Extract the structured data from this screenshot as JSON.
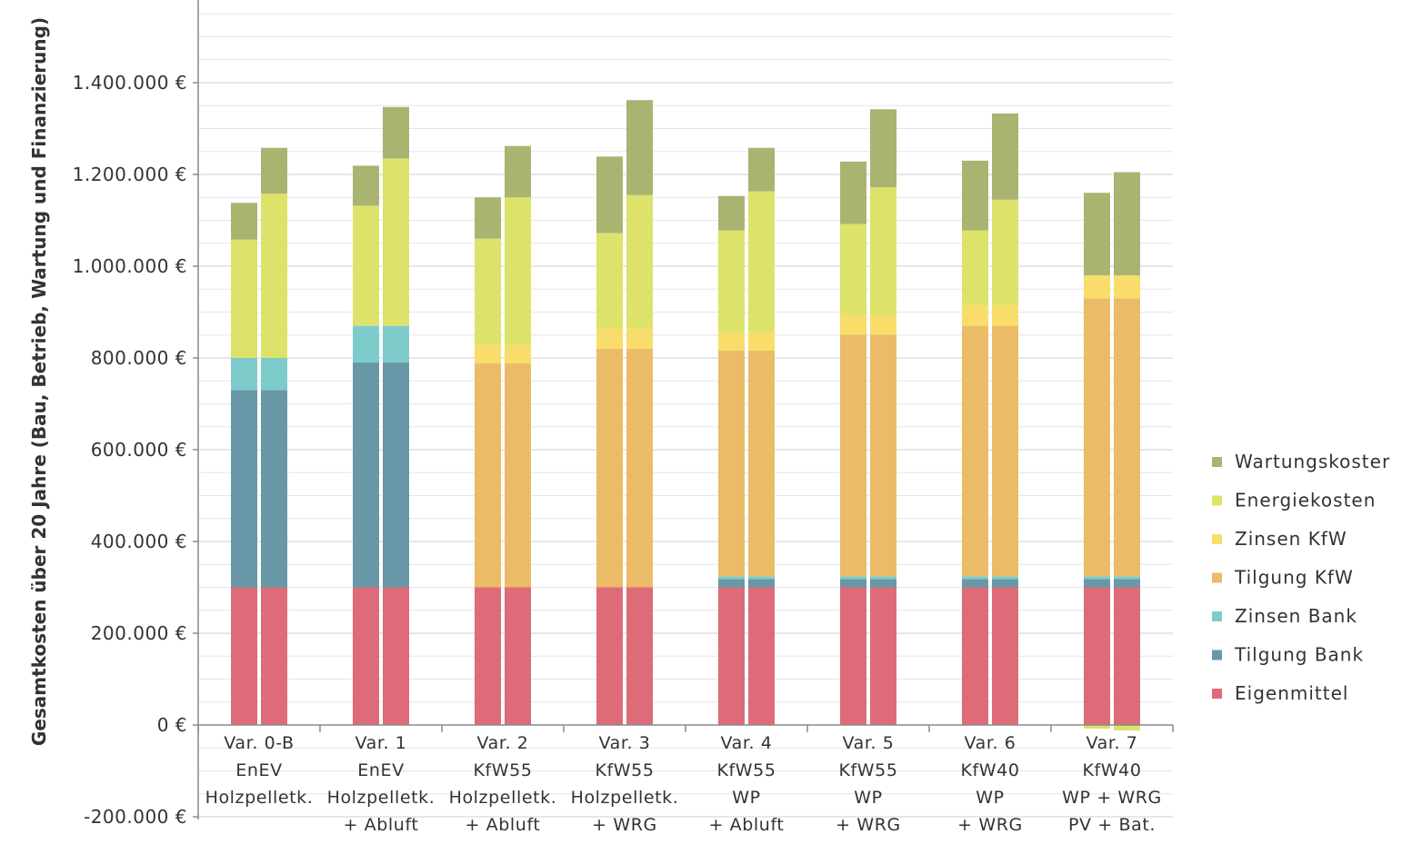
{
  "chart_data": {
    "type": "bar",
    "stacked": true,
    "bars_per_category": 2,
    "ylabel": "Gesamtkosten über 20 Jahre (Bau, Betrieb, Wartung und Finanzierung)",
    "ylim": [
      -200000,
      1560000
    ],
    "y_ticks": [
      -200000,
      0,
      200000,
      400000,
      600000,
      800000,
      1000000,
      1200000,
      1400000
    ],
    "y_tick_labels": [
      "-200.000 €",
      "0   €",
      "200.000 €",
      "400.000 €",
      "600.000 €",
      "800.000 €",
      "1.000.000 €",
      "1.200.000 €",
      "1.400.000 €"
    ],
    "grid": true,
    "legend_position": "right",
    "categories": [
      [
        "Var. 0-B",
        "EnEV",
        "Holzpelletk."
      ],
      [
        "Var. 1",
        "EnEV",
        "Holzpelletk.",
        "+ Abluft"
      ],
      [
        "Var. 2",
        "KfW55",
        "Holzpelletk.",
        "+ Abluft"
      ],
      [
        "Var. 3",
        "KfW55",
        "Holzpelletk.",
        "+ WRG"
      ],
      [
        "Var. 4",
        "KfW55",
        "WP",
        "+ Abluft"
      ],
      [
        "Var. 5",
        "KfW55",
        "WP",
        "+ WRG"
      ],
      [
        "Var. 6",
        "KfW40",
        "WP",
        "+ WRG"
      ],
      [
        "Var. 7",
        "KfW40",
        "WP + WRG",
        "PV + Bat."
      ]
    ],
    "series": [
      {
        "name": "Eigenmittel",
        "color": "#dd6b78",
        "values": [
          [
            300000,
            300000
          ],
          [
            300000,
            300000
          ],
          [
            300000,
            300000
          ],
          [
            300000,
            300000
          ],
          [
            300000,
            300000
          ],
          [
            300000,
            300000
          ],
          [
            300000,
            300000
          ],
          [
            300000,
            300000
          ]
        ]
      },
      {
        "name": "Tilgung Bank",
        "color": "#6897a7",
        "values": [
          [
            430000,
            430000
          ],
          [
            490000,
            490000
          ],
          [
            0,
            0
          ],
          [
            0,
            0
          ],
          [
            18000,
            18000
          ],
          [
            18000,
            18000
          ],
          [
            18000,
            18000
          ],
          [
            18000,
            18000
          ]
        ]
      },
      {
        "name": "Zinsen Bank",
        "color": "#7ecbcc",
        "values": [
          [
            70000,
            70000
          ],
          [
            80000,
            80000
          ],
          [
            0,
            0
          ],
          [
            0,
            0
          ],
          [
            6000,
            6000
          ],
          [
            6000,
            6000
          ],
          [
            6000,
            6000
          ],
          [
            6000,
            6000
          ]
        ]
      },
      {
        "name": "Tilgung KfW",
        "color": "#ebbb67",
        "values": [
          [
            0,
            0
          ],
          [
            0,
            0
          ],
          [
            488000,
            488000
          ],
          [
            520000,
            520000
          ],
          [
            492000,
            492000
          ],
          [
            527000,
            527000
          ],
          [
            546000,
            546000
          ],
          [
            606000,
            606000
          ]
        ]
      },
      {
        "name": "Zinsen KfW",
        "color": "#f8dd6a",
        "values": [
          [
            0,
            0
          ],
          [
            0,
            0
          ],
          [
            40000,
            40000
          ],
          [
            44000,
            44000
          ],
          [
            40000,
            40000
          ],
          [
            43000,
            43000
          ],
          [
            45000,
            45000
          ],
          [
            50000,
            50000
          ]
        ]
      },
      {
        "name": "Energiekosten",
        "color": "#dde26a",
        "values": [
          [
            258000,
            358000
          ],
          [
            262000,
            365000
          ],
          [
            232000,
            322000
          ],
          [
            208000,
            291000
          ],
          [
            222000,
            307000
          ],
          [
            198000,
            278000
          ],
          [
            163000,
            230000
          ],
          [
            -8000,
            -12000
          ]
        ]
      },
      {
        "name": "Wartungskoster",
        "color": "#a9b471",
        "values": [
          [
            80000,
            100000
          ],
          [
            87000,
            112000
          ],
          [
            90000,
            112000
          ],
          [
            167000,
            207000
          ],
          [
            75000,
            95000
          ],
          [
            136000,
            170000
          ],
          [
            152000,
            188000
          ],
          [
            180000,
            225000
          ]
        ]
      }
    ]
  },
  "legend_order": [
    "Wartungskoster",
    "Energiekosten",
    "Zinsen KfW",
    "Tilgung KfW",
    "Zinsen Bank",
    "Tilgung Bank",
    "Eigenmittel"
  ]
}
